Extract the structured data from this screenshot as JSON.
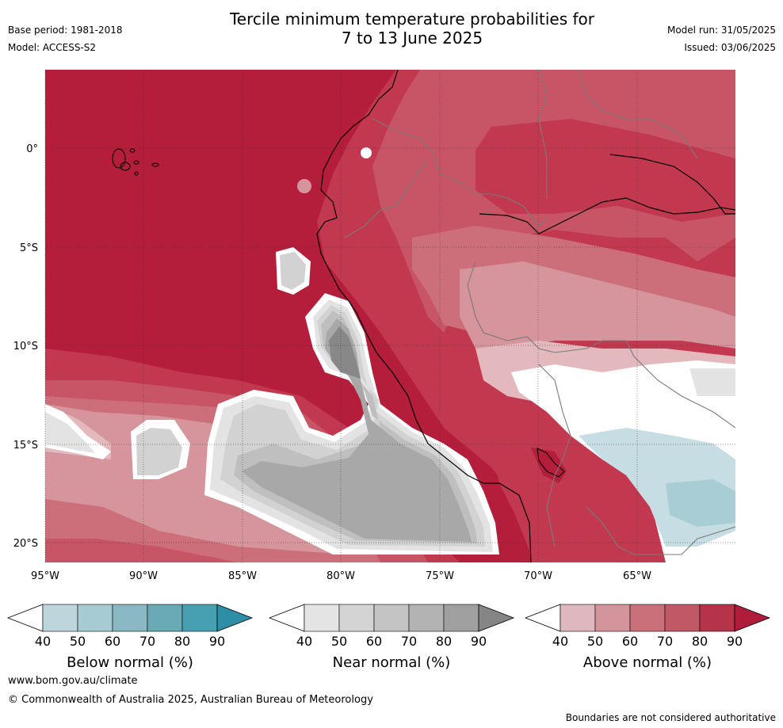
{
  "header": {
    "title_line1": "Tercile minimum temperature probabilities for",
    "title_line2": "7 to 13 June 2025",
    "base_period": "Base period: 1981-2018",
    "model": "Model: ACCESS-S2",
    "model_run": "Model run: 31/05/2025",
    "issued": "Issued: 03/06/2025"
  },
  "map": {
    "lat_labels": [
      "0°",
      "5°S",
      "10°S",
      "15°S",
      "20°S"
    ],
    "lon_labels": [
      "95°W",
      "90°W",
      "85°W",
      "80°W",
      "75°W",
      "70°W",
      "65°W"
    ],
    "colors": {
      "ocean_above_90": "#b41e3a",
      "above_80": "#c2394f",
      "above_70": "#c85566",
      "above_60": "#cd6e7b",
      "above_50": "#d6949c",
      "above_40": "#e3b9bd",
      "neutral": "#ffffff",
      "near_50": "#e3e3e3",
      "near_60": "#d2d2d2",
      "near_70": "#bfbfbf",
      "near_80": "#a8a8a8",
      "near_90": "#888888",
      "below_40": "#c6dde3",
      "below_50": "#a9cdd5"
    }
  },
  "colorbars": [
    {
      "title": "Below normal (%)",
      "ticks": [
        "40",
        "50",
        "60",
        "70",
        "80",
        "90"
      ],
      "colors": [
        "#ffffff",
        "#bcd6dc",
        "#a6cbd3",
        "#8ab8c3",
        "#6aaab7",
        "#47a0b2",
        "#2e8ea6"
      ]
    },
    {
      "title": "Near normal (%)",
      "ticks": [
        "40",
        "50",
        "60",
        "70",
        "80",
        "90"
      ],
      "colors": [
        "#ffffff",
        "#e4e4e4",
        "#d4d4d4",
        "#c4c4c4",
        "#b3b3b3",
        "#a0a0a0",
        "#858585"
      ]
    },
    {
      "title": "Above normal (%)",
      "ticks": [
        "40",
        "50",
        "60",
        "70",
        "80",
        "90"
      ],
      "colors": [
        "#ffffff",
        "#dfb8bd",
        "#d4949b",
        "#c9707b",
        "#c05866",
        "#b6344a",
        "#b01d3b"
      ]
    }
  ],
  "footer": {
    "url": "www.bom.gov.au/climate",
    "copyright": "© Commonwealth of Australia 2025, Australian Bureau of Meteorology",
    "disclaimer": "Boundaries are not considered authoritative"
  }
}
